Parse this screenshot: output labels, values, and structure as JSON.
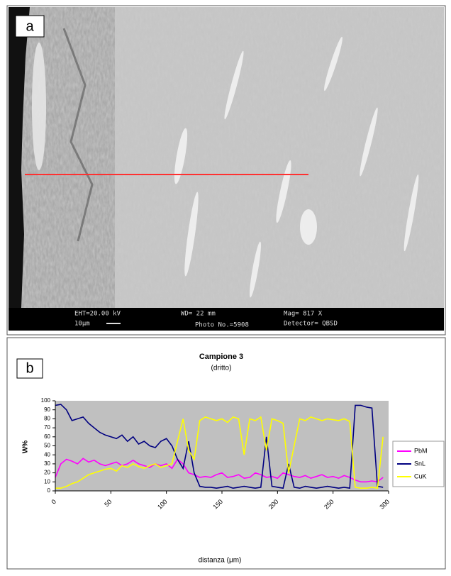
{
  "panel_a": {
    "label": "a",
    "info": [
      "EHT=20.00 kV",
      "WD= 22 mm",
      "Mag= 817 X",
      "10μm",
      "Photo No.=5908",
      "Detector= QBSD"
    ]
  },
  "panel_b": {
    "label": "b"
  },
  "chart_data": {
    "type": "line",
    "title": "Campione 3",
    "subtitle": "(dritto)",
    "x_label": "distanza (μm)",
    "y_label": "W%",
    "x": [
      0,
      5,
      10,
      15,
      20,
      25,
      30,
      35,
      40,
      45,
      50,
      55,
      60,
      65,
      70,
      75,
      80,
      85,
      90,
      95,
      100,
      105,
      110,
      115,
      120,
      125,
      130,
      135,
      140,
      145,
      150,
      155,
      160,
      165,
      170,
      175,
      180,
      185,
      190,
      195,
      200,
      205,
      210,
      215,
      220,
      225,
      230,
      235,
      240,
      245,
      250,
      255,
      260,
      265,
      270,
      275,
      280,
      285,
      290,
      295
    ],
    "series": [
      {
        "name": "PbM",
        "color": "#ff00ff",
        "values": [
          15,
          30,
          35,
          33,
          30,
          36,
          32,
          34,
          30,
          28,
          30,
          32,
          28,
          30,
          34,
          30,
          28,
          26,
          30,
          28,
          30,
          25,
          35,
          30,
          20,
          18,
          15,
          16,
          15,
          18,
          20,
          15,
          16,
          18,
          14,
          15,
          20,
          18,
          15,
          16,
          14,
          20,
          18,
          16,
          15,
          17,
          14,
          16,
          18,
          15,
          16,
          14,
          17,
          15,
          12,
          10,
          10,
          11,
          10,
          15
        ]
      },
      {
        "name": "SnL",
        "color": "#000080",
        "values": [
          95,
          96,
          90,
          78,
          80,
          82,
          75,
          70,
          65,
          62,
          60,
          58,
          62,
          55,
          60,
          52,
          55,
          50,
          48,
          55,
          58,
          50,
          35,
          25,
          55,
          20,
          5,
          4,
          4,
          3,
          4,
          5,
          3,
          4,
          5,
          4,
          3,
          4,
          60,
          5,
          4,
          3,
          30,
          4,
          3,
          5,
          4,
          3,
          4,
          5,
          4,
          3,
          4,
          3,
          95,
          95,
          93,
          92,
          5,
          4
        ]
      },
      {
        "name": "CuK",
        "color": "#ffff00",
        "values": [
          3,
          3,
          5,
          8,
          10,
          14,
          18,
          20,
          22,
          24,
          25,
          22,
          28,
          26,
          30,
          27,
          25,
          28,
          30,
          26,
          28,
          30,
          55,
          80,
          45,
          35,
          78,
          82,
          80,
          78,
          80,
          76,
          82,
          80,
          40,
          80,
          78,
          82,
          45,
          80,
          78,
          75,
          20,
          50,
          80,
          78,
          82,
          80,
          78,
          80,
          79,
          78,
          80,
          77,
          4,
          3,
          3,
          4,
          3,
          60
        ]
      }
    ],
    "xlim": [
      0,
      300
    ],
    "xticks": [
      0,
      50,
      100,
      150,
      200,
      250,
      300
    ],
    "ylim": [
      0,
      100
    ],
    "yticks": [
      0,
      10,
      20,
      30,
      40,
      50,
      60,
      70,
      80,
      90,
      100
    ],
    "background": "#c0c0c0",
    "legend": "right"
  }
}
